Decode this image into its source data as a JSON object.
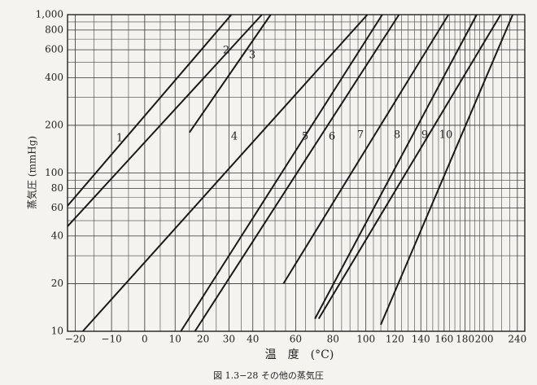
{
  "chart_data": {
    "type": "line",
    "ylabel": "蒸気圧 (mmHg)",
    "xlabel": "温　度　(°C)",
    "caption": "図 1.3−28 その他の蒸気圧",
    "xscale": "cox",
    "yscale": "log",
    "grid": true,
    "xlim": [
      -22,
      250
    ],
    "ylim": [
      10,
      1000
    ],
    "xticks": [
      {
        "value": -20,
        "label": "−20"
      },
      {
        "value": -10,
        "label": "−10"
      },
      0,
      10,
      20,
      30,
      40,
      60,
      80,
      100,
      120,
      140,
      160,
      180,
      200,
      240
    ],
    "x_minor_ticks": [
      -15,
      -5,
      5,
      15,
      25,
      35,
      45,
      50,
      55,
      65,
      70,
      75,
      85,
      90,
      95,
      105,
      110,
      115,
      125,
      130,
      135,
      145,
      150,
      155,
      165,
      170,
      175,
      185,
      190,
      195,
      210,
      220,
      230
    ],
    "yticks": [
      10,
      20,
      40,
      60,
      80,
      100,
      200,
      400,
      600,
      800,
      {
        "value": 1000,
        "label": "1,000"
      }
    ],
    "y_minor_ticks": [
      30,
      50,
      70,
      90,
      300,
      500,
      700,
      900
    ],
    "color": "#1a1a1a",
    "series": [
      {
        "name": "1",
        "x": [
          -22,
          31
        ],
        "values": [
          62,
          1000
        ]
      },
      {
        "name": "2",
        "x": [
          -22,
          44
        ],
        "values": [
          46,
          1000
        ]
      },
      {
        "name": "3",
        "x": [
          15,
          48
        ],
        "values": [
          180,
          1000
        ]
      },
      {
        "name": "4",
        "x": [
          -18,
          101
        ],
        "values": [
          10,
          1000
        ]
      },
      {
        "name": "5",
        "x": [
          12,
          111
        ],
        "values": [
          10,
          1000
        ]
      },
      {
        "name": "6",
        "x": [
          17,
          123
        ],
        "values": [
          10,
          1000
        ]
      },
      {
        "name": "7",
        "x": [
          54,
          164
        ],
        "values": [
          20,
          1000
        ]
      },
      {
        "name": "8",
        "x": [
          70,
          192
        ],
        "values": [
          12,
          1000
        ]
      },
      {
        "name": "9",
        "x": [
          72,
          219
        ],
        "values": [
          12,
          1000
        ]
      },
      {
        "name": "10",
        "x": [
          110,
          234
        ],
        "values": [
          11,
          1000
        ]
      }
    ]
  }
}
